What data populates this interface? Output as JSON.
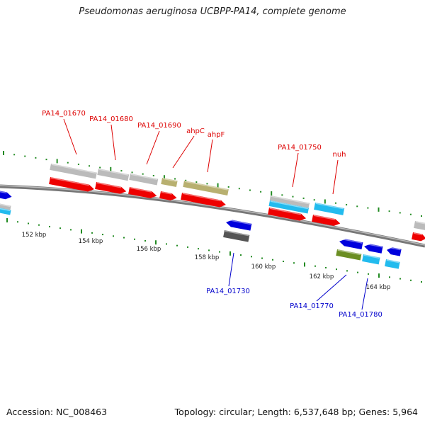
{
  "title": "Pseudomonas aeruginosa UCBPP-PA14, complete genome",
  "footer": {
    "accession": "Accession: NC_008463",
    "stats": "Topology: circular; Length: 6,537,648 bp; Genes: 5,964"
  },
  "colors": {
    "gene_red": "#ee0000",
    "gene_blue": "#0000dd",
    "gene_cyan": "#22bbee",
    "gene_olive": "#b8b070",
    "gene_green": "#6b8e23",
    "gene_grey": "#bbbbbb",
    "gene_darkgrey": "#555555",
    "tick_green": "#228b22",
    "backbone": "#777777",
    "label_red": "#dd0000",
    "label_blue": "#0000cc"
  },
  "scale_labels": [
    "152 kbp",
    "154 kbp",
    "156 kbp",
    "158 kbp",
    "160 kbp",
    "162 kbp",
    "164 kbp"
  ],
  "gene_labels_top": [
    "PA14_01670",
    "PA14_01680",
    "PA14_01690",
    "ahpC",
    "ahpF",
    "PA14_01750",
    "nuh"
  ],
  "gene_labels_bottom": [
    "PA14_01730",
    "PA14_01770",
    "PA14_01780"
  ]
}
